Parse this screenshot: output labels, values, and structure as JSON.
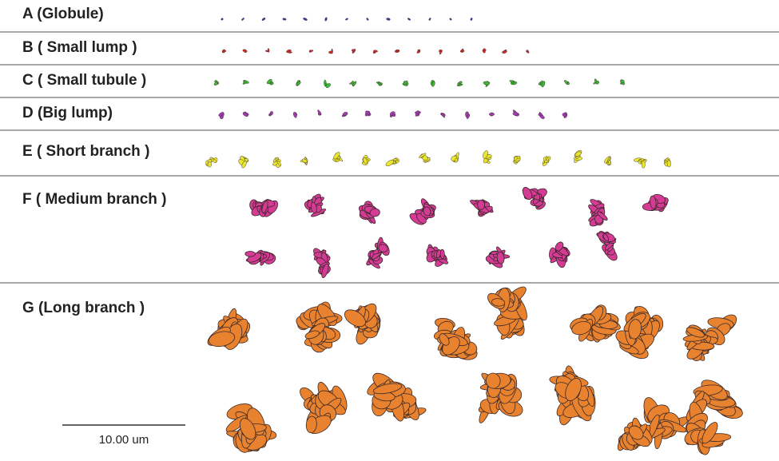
{
  "rows": [
    {
      "label": "A (Globule)"
    },
    {
      "label": "B ( Small lump )"
    },
    {
      "label": "C ( Small tubule )"
    },
    {
      "label": "D (Big lump)"
    },
    {
      "label": "E ( Short branch )"
    },
    {
      "label": "F ( Medium branch )"
    },
    {
      "label": "G (Long branch )"
    }
  ],
  "scale_bar": {
    "label": "10.00 um"
  }
}
